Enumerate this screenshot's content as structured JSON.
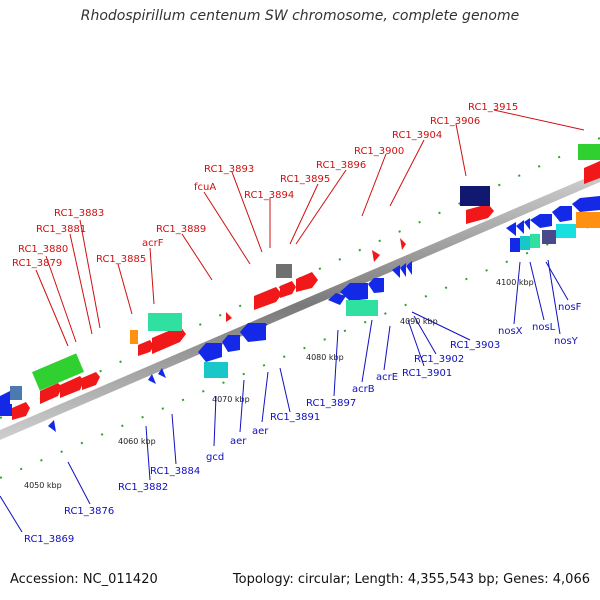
{
  "title": "Rhodospirillum centenum SW chromosome, complete genome",
  "accession": "Accession: NC_011420",
  "summary": "Topology: circular; Length: 4,355,543 bp; Genes: 4,066",
  "scale_labels": [
    "4050 kbp",
    "4060 kbp",
    "4070 kbp",
    "4080 kbp",
    "4090 kbp",
    "4100 kbp"
  ],
  "labels_top": [
    "RC1_3915",
    "RC1_3906",
    "RC1_3904",
    "RC1_3900",
    "RC1_3896",
    "RC1_3895",
    "RC1_3894",
    "RC1_3893",
    "fcuA",
    "RC1_3889",
    "acrF",
    "RC1_3885",
    "RC1_3883",
    "RC1_3881",
    "RC1_3880",
    "RC1_3879"
  ],
  "labels_bottom": [
    "nosF",
    "nosY",
    "nosL",
    "nosX",
    "RC1_3903",
    "RC1_3902",
    "RC1_3901",
    "acrE",
    "acrB",
    "RC1_3897",
    "RC1_3891",
    "aer",
    "aer",
    "gcd",
    "RC1_3884",
    "RC1_3882",
    "RC1_3876",
    "RC1_3869"
  ],
  "colors": {
    "red": "#f01818",
    "blue": "#1428e8",
    "cyan": "#18c8c8",
    "green": "#30d030",
    "teal": "#30e0a0",
    "orange": "#ff9010",
    "navy": "#101870",
    "gray": "#707070",
    "label_red": "#d01010",
    "label_blue": "#1010c0"
  }
}
